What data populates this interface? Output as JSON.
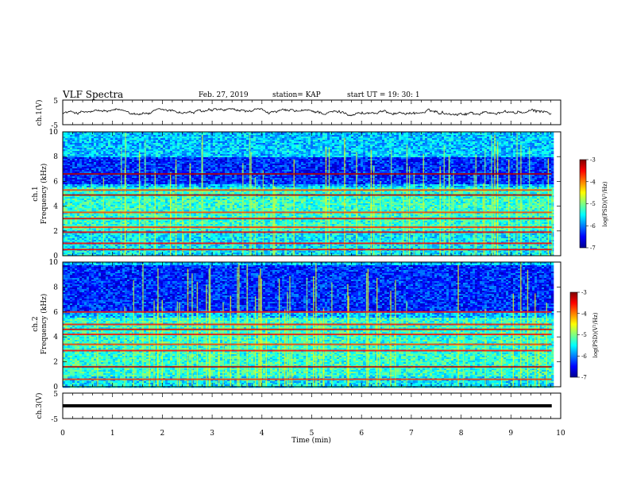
{
  "header": {
    "title": "VLF Spectra",
    "date": "Feb. 27, 2019",
    "station": "station= KAP",
    "start": "start  UT  =   19: 30: 1"
  },
  "chart_data": {
    "type": "heatmap",
    "title": "VLF Spectra",
    "xlabel": "Time  (min)",
    "xlim": [
      0,
      10
    ],
    "x_ticks": [
      "0",
      "1",
      "2",
      "3",
      "4",
      "5",
      "6",
      "7",
      "8",
      "9",
      "10"
    ],
    "data_end_min": 9.82,
    "panels": [
      {
        "kind": "waveform",
        "ylabel": "ch.1(V)",
        "ylim": [
          -5,
          5
        ],
        "y_ticks": [
          "5",
          "-5"
        ],
        "noise_amplitude_v": 1.5
      },
      {
        "kind": "spectrogram",
        "ylabel_line1": "ch.1",
        "ylabel_line2": "Frequency  (kHz)",
        "ylim_khz": [
          0,
          10
        ],
        "y_ticks": [
          "10",
          "8",
          "6",
          "4",
          "2",
          "0"
        ],
        "colorbar": {
          "label": "log(PSD)(V²/Hz)",
          "range": [
            -7,
            -3
          ],
          "ticks": [
            "-3",
            "-4",
            "-5",
            "-6",
            "-7"
          ]
        },
        "hum_lines_khz": [
          0.5,
          1.0,
          1.9,
          2.3,
          3.0,
          3.5,
          4.9,
          5.3,
          6.6
        ],
        "dominant_band_khz": [
          2.0,
          5.5
        ],
        "quiet_band_khz": [
          5.8,
          8.0
        ]
      },
      {
        "kind": "spectrogram",
        "ylabel_line1": "ch.2",
        "ylabel_line2": "Frequency  (kHz)",
        "ylim_khz": [
          0,
          10
        ],
        "y_ticks": [
          "10",
          "8",
          "6",
          "4",
          "2",
          "0"
        ],
        "colorbar": {
          "label": "log(PSD)(V²/Hz)",
          "range": [
            -7,
            -3
          ],
          "ticks": [
            "-3",
            "-4",
            "-5",
            "-6",
            "-7"
          ]
        },
        "hum_lines_khz": [
          0.6,
          1.6,
          2.9,
          3.4,
          4.2,
          4.6,
          5.0,
          6.0
        ],
        "dominant_band_khz": [
          0.8,
          5.5
        ],
        "quiet_band_khz": [
          6.0,
          9.8
        ]
      },
      {
        "kind": "waveform",
        "ylabel": "ch.3(V)",
        "ylim": [
          -5,
          5
        ],
        "y_ticks": [
          "5",
          "-5"
        ],
        "constant_value_v": 0
      }
    ]
  },
  "colors": {
    "jet": [
      "#00008f",
      "#0000ff",
      "#0080ff",
      "#00ffff",
      "#80ff80",
      "#ffff00",
      "#ff8000",
      "#ff0000",
      "#800000"
    ]
  }
}
